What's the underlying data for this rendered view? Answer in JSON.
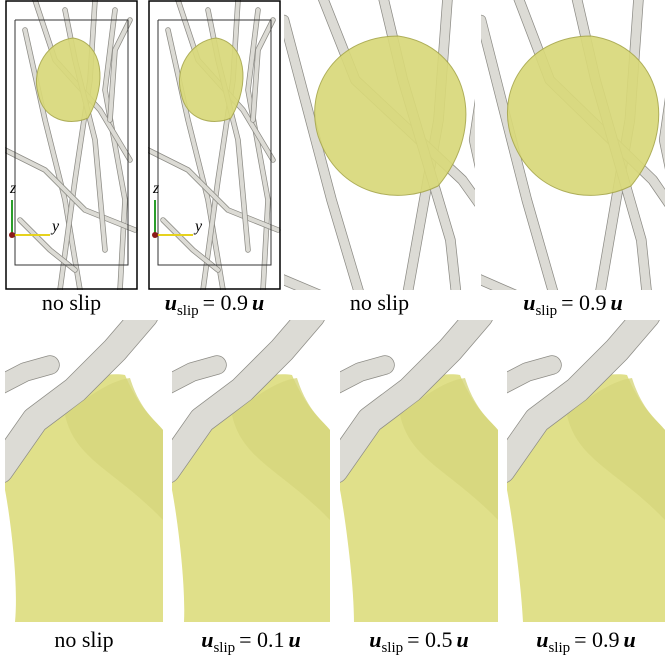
{
  "top_row": [
    {
      "caption": {
        "text": "no slip"
      },
      "axis_labels": {
        "vertical": "z",
        "horizontal": "y"
      }
    },
    {
      "caption": {
        "symbol": "u",
        "subscript": "slip",
        "relation": "= 0.9",
        "factor": "u"
      },
      "axis_labels": {
        "vertical": "z",
        "horizontal": "y"
      }
    },
    {
      "caption": {
        "text": "no slip"
      }
    },
    {
      "caption": {
        "symbol": "u",
        "subscript": "slip",
        "relation": "= 0.9",
        "factor": "u"
      }
    }
  ],
  "bottom_row": [
    {
      "caption": {
        "text": "no slip"
      }
    },
    {
      "caption": {
        "symbol": "u",
        "subscript": "slip",
        "relation": "= 0.1",
        "factor": "u"
      }
    },
    {
      "caption": {
        "symbol": "u",
        "subscript": "slip",
        "relation": "= 0.5",
        "factor": "u"
      }
    },
    {
      "caption": {
        "symbol": "u",
        "subscript": "slip",
        "relation": "= 0.9",
        "factor": "u"
      }
    }
  ]
}
